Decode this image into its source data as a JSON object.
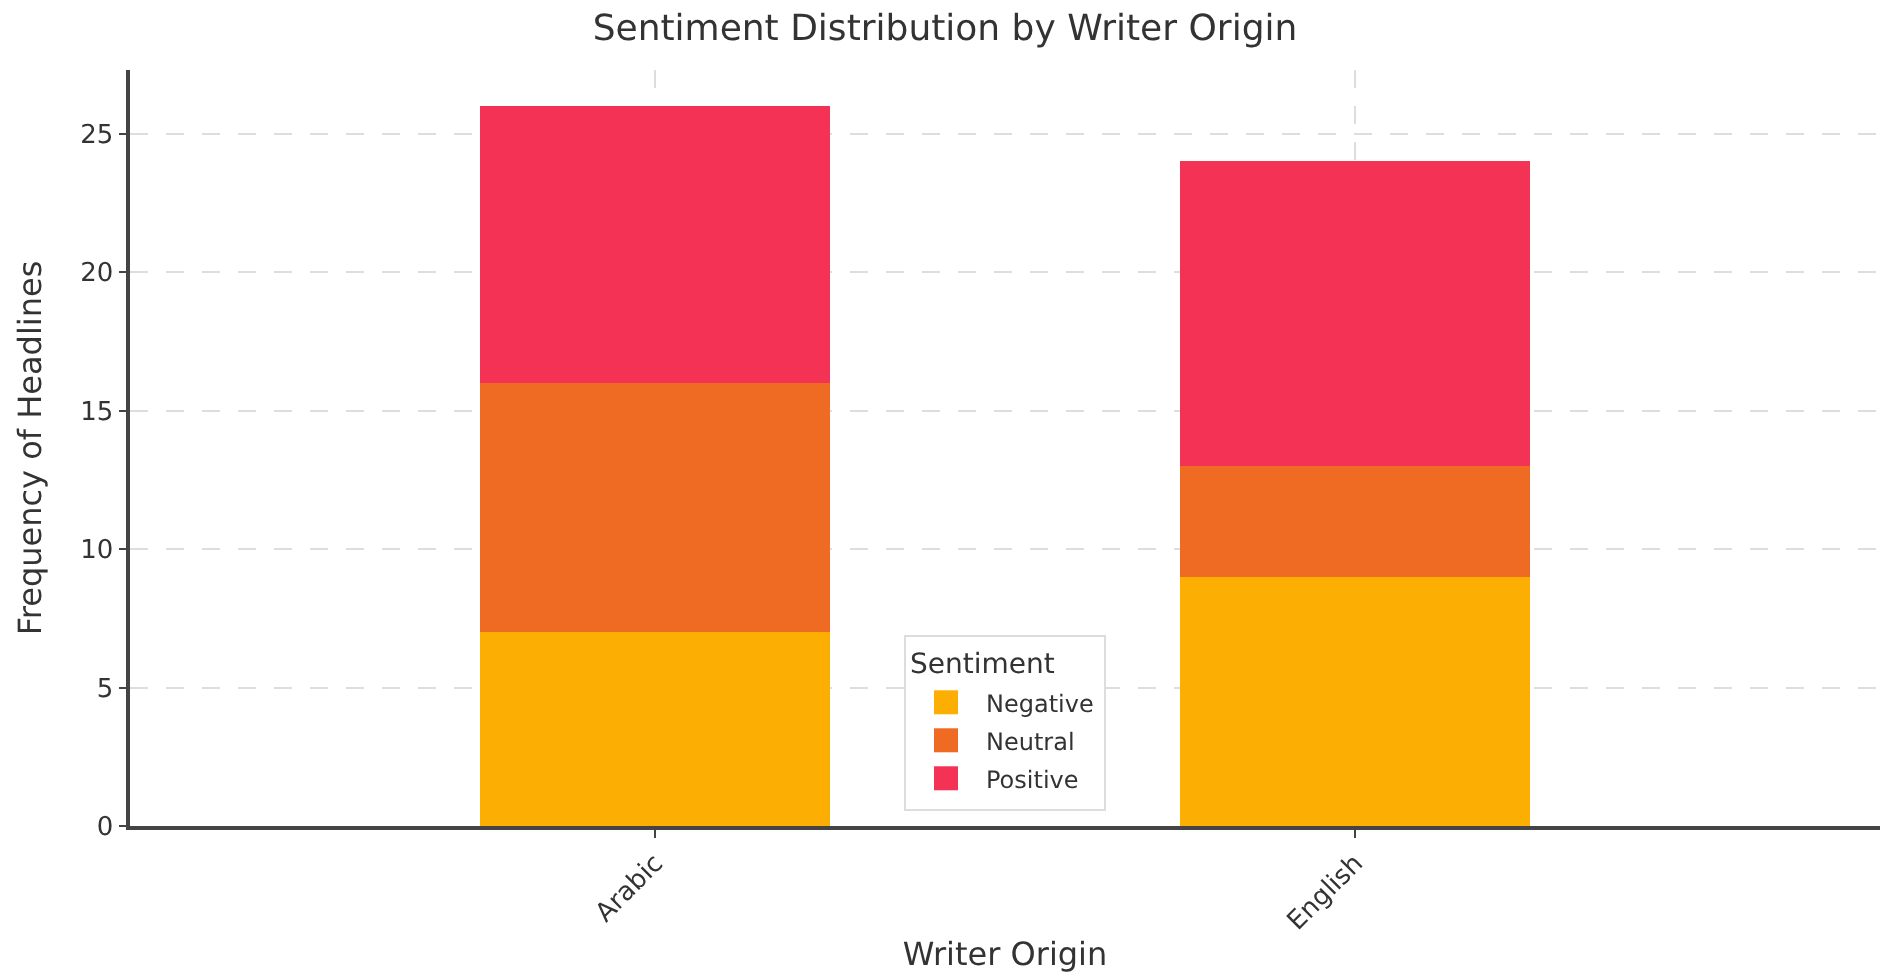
{
  "chart_data": {
    "type": "bar",
    "title": "Sentiment Distribution by Writer Origin",
    "xlabel": "Writer Origin",
    "ylabel": "Frequency of Headlines",
    "legend_title": "Sentiment",
    "categories": [
      "Arabic",
      "English"
    ],
    "series": [
      {
        "name": "Negative",
        "color": "#fcae03",
        "values": [
          7,
          9
        ]
      },
      {
        "name": "Neutral",
        "color": "#ef6a22",
        "values": [
          9,
          4
        ]
      },
      {
        "name": "Positive",
        "color": "#f43255",
        "values": [
          10,
          11
        ]
      }
    ],
    "stacked": true,
    "ylim": [
      0,
      27.3
    ],
    "yticks": [
      0,
      5,
      10,
      15,
      20,
      25
    ],
    "grid": true,
    "legend": "bottom"
  }
}
